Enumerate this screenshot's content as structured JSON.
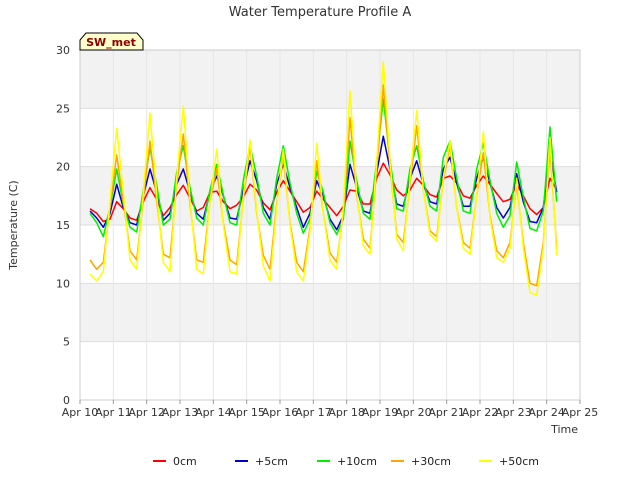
{
  "chart_data": {
    "type": "line",
    "title": "Water Temperature Profile A",
    "xlabel": "Time",
    "ylabel": "Temperature (C)",
    "ylim": [
      0,
      30
    ],
    "yticks": [
      0,
      5,
      10,
      15,
      20,
      25,
      30
    ],
    "xlim": [
      10,
      25
    ],
    "xticks": [
      {
        "value": 10,
        "label": "Apr 10"
      },
      {
        "value": 11,
        "label": "Apr 11"
      },
      {
        "value": 12,
        "label": "Apr 12"
      },
      {
        "value": 13,
        "label": "Apr 13"
      },
      {
        "value": 14,
        "label": "Apr 14"
      },
      {
        "value": 15,
        "label": "Apr 15"
      },
      {
        "value": 16,
        "label": "Apr 16"
      },
      {
        "value": 17,
        "label": "Apr 17"
      },
      {
        "value": 18,
        "label": "Apr 18"
      },
      {
        "value": 19,
        "label": "Apr 19"
      },
      {
        "value": 20,
        "label": "Apr 20"
      },
      {
        "value": 21,
        "label": "Apr 21"
      },
      {
        "value": 22,
        "label": "Apr 22"
      },
      {
        "value": 23,
        "label": "Apr 23"
      },
      {
        "value": 24,
        "label": "Apr 24"
      },
      {
        "value": 25,
        "label": "Apr 25"
      }
    ],
    "badge": "SW_met",
    "grid": true,
    "legend_position": "bottom",
    "series": [
      {
        "name": "0cm",
        "color": "#ff0000",
        "x": [
          10.3,
          10.5,
          10.7,
          10.9,
          11.1,
          11.3,
          11.5,
          11.7,
          11.9,
          12.1,
          12.3,
          12.5,
          12.7,
          12.9,
          13.1,
          13.3,
          13.5,
          13.7,
          13.9,
          14.1,
          14.3,
          14.5,
          14.7,
          14.9,
          15.1,
          15.3,
          15.5,
          15.7,
          15.9,
          16.1,
          16.3,
          16.5,
          16.7,
          16.9,
          17.1,
          17.3,
          17.5,
          17.7,
          17.9,
          18.1,
          18.3,
          18.5,
          18.7,
          18.9,
          19.1,
          19.3,
          19.5,
          19.7,
          19.9,
          20.1,
          20.3,
          20.5,
          20.7,
          20.9,
          21.1,
          21.3,
          21.5,
          21.7,
          21.9,
          22.1,
          22.3,
          22.5,
          22.7,
          22.9,
          23.1,
          23.3,
          23.5,
          23.7,
          23.9,
          24.1,
          24.3
        ],
        "values": [
          16.4,
          16.0,
          15.3,
          15.5,
          17.0,
          16.4,
          15.6,
          15.4,
          17.0,
          18.2,
          17.2,
          15.8,
          16.5,
          17.6,
          18.4,
          17.3,
          16.2,
          16.5,
          17.8,
          17.9,
          17.0,
          16.4,
          16.7,
          17.4,
          18.5,
          18.0,
          16.9,
          16.3,
          17.8,
          18.8,
          17.9,
          17.0,
          16.1,
          16.5,
          17.9,
          17.2,
          16.5,
          15.8,
          16.6,
          18.0,
          17.9,
          16.8,
          16.8,
          19.0,
          20.3,
          19.3,
          18.0,
          17.5,
          18.0,
          19.0,
          18.4,
          17.6,
          17.4,
          19.0,
          19.2,
          18.6,
          17.5,
          17.3,
          18.4,
          19.2,
          18.5,
          17.7,
          17.0,
          17.2,
          18.5,
          17.5,
          16.4,
          15.9,
          16.5,
          19.0,
          18.0
        ]
      },
      {
        "name": "+5cm",
        "color": "#0000cc",
        "x": [
          10.3,
          10.5,
          10.7,
          10.9,
          11.1,
          11.3,
          11.5,
          11.7,
          11.9,
          12.1,
          12.3,
          12.5,
          12.7,
          12.9,
          13.1,
          13.3,
          13.5,
          13.7,
          13.9,
          14.1,
          14.3,
          14.5,
          14.7,
          14.9,
          15.1,
          15.3,
          15.5,
          15.7,
          15.9,
          16.1,
          16.3,
          16.5,
          16.7,
          16.9,
          17.1,
          17.3,
          17.5,
          17.7,
          17.9,
          18.1,
          18.3,
          18.5,
          18.7,
          18.9,
          19.1,
          19.3,
          19.5,
          19.7,
          19.9,
          20.1,
          20.3,
          20.5,
          20.7,
          20.9,
          21.1,
          21.3,
          21.5,
          21.7,
          21.9,
          22.1,
          22.3,
          22.5,
          22.7,
          22.9,
          23.1,
          23.3,
          23.5,
          23.7,
          23.9,
          24.1,
          24.3
        ],
        "values": [
          16.2,
          15.6,
          14.8,
          16.0,
          18.5,
          16.5,
          15.2,
          15.0,
          17.5,
          19.8,
          17.8,
          15.4,
          16.0,
          18.5,
          19.8,
          17.8,
          16.0,
          15.5,
          17.8,
          19.2,
          17.5,
          15.6,
          15.5,
          18.0,
          20.5,
          18.8,
          16.5,
          15.5,
          18.5,
          20.2,
          18.2,
          16.5,
          14.8,
          16.0,
          18.8,
          17.5,
          15.5,
          14.6,
          15.8,
          20.2,
          18.2,
          16.2,
          16.0,
          19.5,
          22.6,
          19.8,
          16.8,
          16.6,
          19.0,
          20.5,
          18.5,
          17.0,
          16.8,
          19.8,
          20.8,
          18.6,
          16.6,
          16.6,
          19.0,
          20.8,
          18.6,
          16.5,
          15.6,
          16.5,
          19.4,
          17.0,
          15.3,
          15.2,
          16.5,
          21.2,
          17.8
        ]
      },
      {
        "name": "+10cm",
        "color": "#00ee00",
        "x": [
          10.3,
          10.5,
          10.7,
          10.9,
          11.1,
          11.3,
          11.5,
          11.7,
          11.9,
          12.1,
          12.3,
          12.5,
          12.7,
          12.9,
          13.1,
          13.3,
          13.5,
          13.7,
          13.9,
          14.1,
          14.3,
          14.5,
          14.7,
          14.9,
          15.1,
          15.3,
          15.5,
          15.7,
          15.9,
          16.1,
          16.3,
          16.5,
          16.7,
          16.9,
          17.1,
          17.3,
          17.5,
          17.7,
          17.9,
          18.1,
          18.3,
          18.5,
          18.7,
          18.9,
          19.1,
          19.3,
          19.5,
          19.7,
          19.9,
          20.1,
          20.3,
          20.5,
          20.7,
          20.9,
          21.1,
          21.3,
          21.5,
          21.7,
          21.9,
          22.1,
          22.3,
          22.5,
          22.7,
          22.9,
          23.1,
          23.3,
          23.5,
          23.7,
          23.9,
          24.1,
          24.3
        ],
        "values": [
          16.0,
          15.2,
          14.0,
          16.5,
          19.8,
          16.8,
          14.8,
          14.4,
          18.0,
          21.6,
          18.4,
          15.0,
          15.5,
          19.5,
          21.8,
          18.2,
          15.6,
          15.0,
          18.0,
          20.2,
          17.6,
          15.2,
          15.0,
          18.8,
          21.8,
          19.2,
          16.0,
          15.0,
          19.0,
          21.8,
          18.6,
          16.0,
          14.3,
          15.5,
          19.6,
          17.8,
          15.2,
          14.2,
          15.5,
          22.2,
          18.8,
          16.0,
          15.5,
          20.5,
          25.8,
          20.6,
          16.4,
          16.2,
          19.8,
          21.8,
          18.8,
          16.6,
          16.2,
          20.8,
          22.2,
          19.0,
          16.2,
          16.0,
          19.8,
          22.0,
          18.8,
          16.0,
          14.8,
          15.8,
          20.4,
          17.4,
          14.7,
          14.5,
          16.2,
          23.4,
          17.0
        ]
      },
      {
        "name": "+30cm",
        "color": "#ffa500",
        "x": [
          10.3,
          10.5,
          10.7,
          10.9,
          11.1,
          11.3,
          11.5,
          11.7,
          11.9,
          12.1,
          12.3,
          12.5,
          12.7,
          12.9,
          13.1,
          13.3,
          13.5,
          13.7,
          13.9,
          14.1,
          14.3,
          14.5,
          14.7,
          14.9,
          15.1,
          15.3,
          15.5,
          15.7,
          15.9,
          16.1,
          16.3,
          16.5,
          16.7,
          16.9,
          17.1,
          17.3,
          17.5,
          17.7,
          17.9,
          18.1,
          18.3,
          18.5,
          18.7,
          18.9,
          19.1,
          19.3,
          19.5,
          19.7,
          19.9,
          20.1,
          20.3,
          20.5,
          20.7,
          20.9,
          21.1,
          21.3,
          21.5,
          21.7,
          21.9,
          22.1,
          22.3,
          22.5,
          22.7,
          22.9,
          23.1,
          23.3,
          23.5,
          23.7,
          23.9,
          24.1,
          24.3
        ],
        "values": [
          12.0,
          11.2,
          11.8,
          16.5,
          21.0,
          17.0,
          12.8,
          12.0,
          17.2,
          22.2,
          17.0,
          12.5,
          12.2,
          18.5,
          22.8,
          16.8,
          12.0,
          11.8,
          17.0,
          19.8,
          15.2,
          12.0,
          11.6,
          17.2,
          21.8,
          16.0,
          12.4,
          11.2,
          16.8,
          20.8,
          15.2,
          11.8,
          11.0,
          14.8,
          20.5,
          16.0,
          12.6,
          11.8,
          16.0,
          24.2,
          17.5,
          13.8,
          13.0,
          19.8,
          27.0,
          20.0,
          14.2,
          13.5,
          18.5,
          23.5,
          18.0,
          14.5,
          14.0,
          18.8,
          21.8,
          16.5,
          13.5,
          13.0,
          17.5,
          21.2,
          15.8,
          12.8,
          12.2,
          13.5,
          18.5,
          13.5,
          10.0,
          9.8,
          13.5,
          21.5,
          13.0
        ]
      },
      {
        "name": "+50cm",
        "color": "#ffff00",
        "x": [
          10.3,
          10.5,
          10.7,
          10.9,
          11.1,
          11.3,
          11.5,
          11.7,
          11.9,
          12.1,
          12.3,
          12.5,
          12.7,
          12.9,
          13.1,
          13.3,
          13.5,
          13.7,
          13.9,
          14.1,
          14.3,
          14.5,
          14.7,
          14.9,
          15.1,
          15.3,
          15.5,
          15.7,
          15.9,
          16.1,
          16.3,
          16.5,
          16.7,
          16.9,
          17.1,
          17.3,
          17.5,
          17.7,
          17.9,
          18.1,
          18.3,
          18.5,
          18.7,
          18.9,
          19.1,
          19.3,
          19.5,
          19.7,
          19.9,
          20.1,
          20.3,
          20.5,
          20.7,
          20.9,
          21.1,
          21.3,
          21.5,
          21.7,
          21.9,
          22.1,
          22.3,
          22.5,
          22.7,
          22.9,
          23.1,
          23.3,
          23.5,
          23.7,
          23.9,
          24.1,
          24.3
        ],
        "values": [
          10.8,
          10.2,
          11.0,
          17.0,
          23.3,
          17.8,
          12.0,
          11.2,
          17.8,
          24.6,
          17.6,
          11.8,
          11.0,
          19.0,
          25.2,
          17.2,
          11.2,
          10.8,
          17.0,
          21.5,
          15.0,
          11.0,
          10.8,
          17.5,
          22.3,
          16.2,
          11.5,
          10.2,
          16.5,
          21.5,
          15.0,
          11.0,
          10.2,
          14.5,
          22.0,
          16.0,
          12.0,
          11.2,
          16.5,
          26.5,
          17.8,
          13.2,
          12.5,
          20.5,
          29.0,
          20.5,
          13.8,
          12.8,
          19.0,
          24.8,
          18.0,
          14.2,
          13.6,
          19.0,
          22.2,
          16.5,
          13.0,
          12.5,
          17.5,
          23.0,
          15.6,
          12.2,
          11.8,
          13.0,
          19.0,
          13.0,
          9.2,
          9.0,
          13.0,
          22.5,
          12.4
        ]
      }
    ]
  }
}
